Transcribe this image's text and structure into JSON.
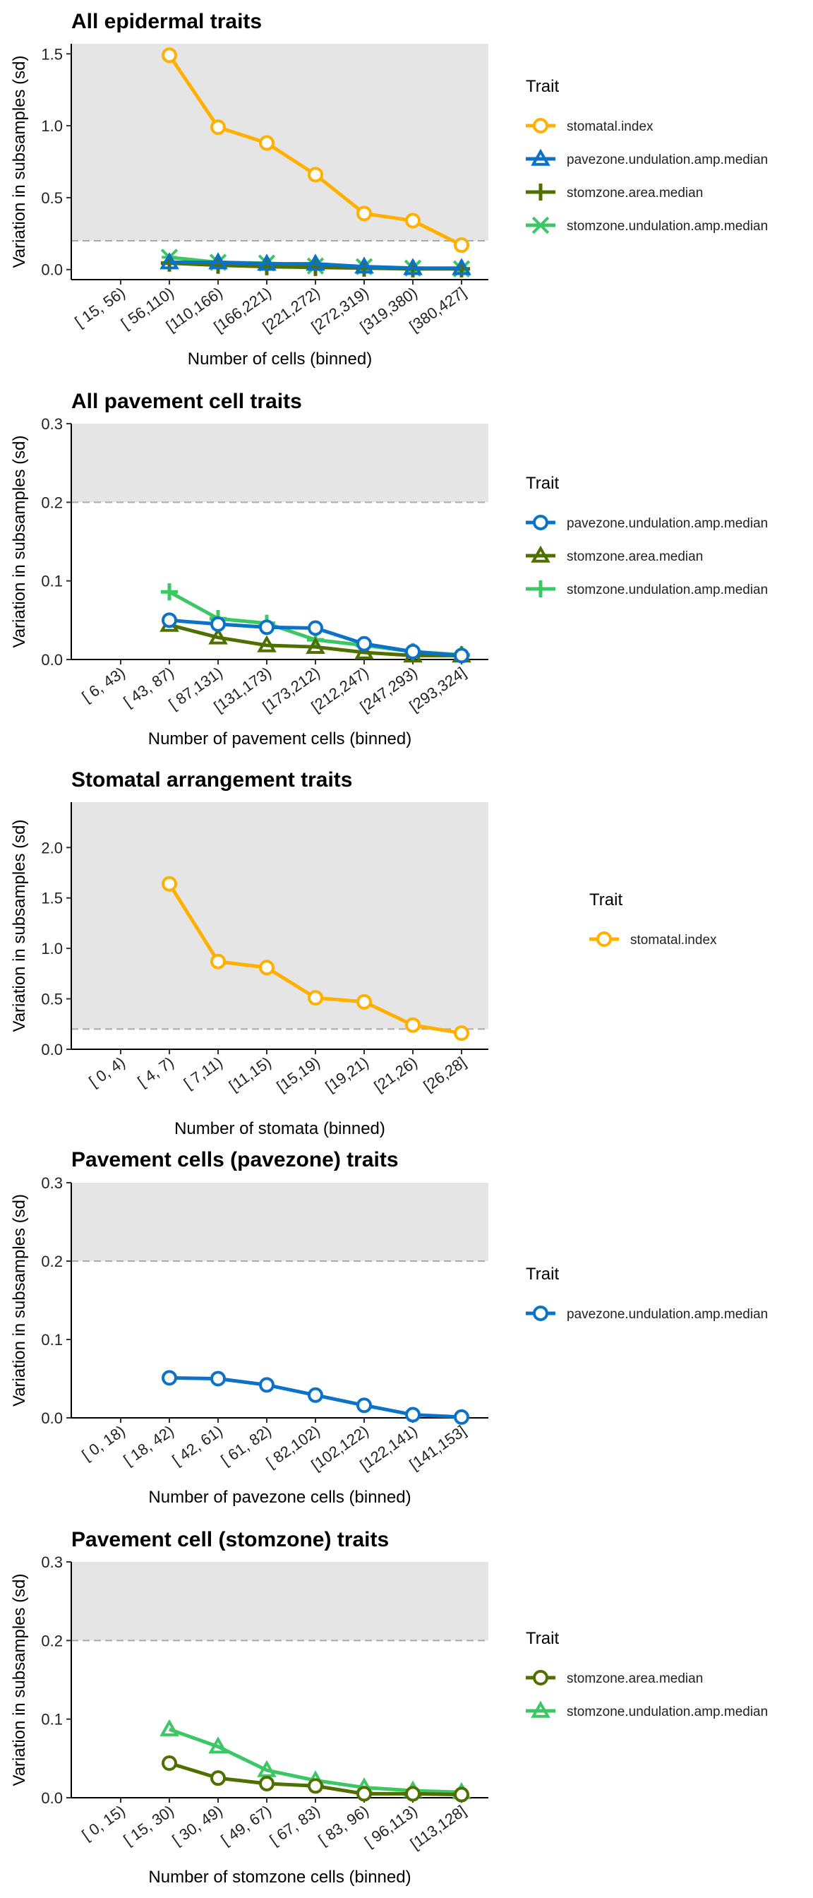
{
  "colors": {
    "stomatal.index": "#FFB000",
    "pavezone.undulation.amp.median": "#0B72C8",
    "stomzone.area.median": "#4F7000",
    "stomzone.undulation.amp.median": "#3CC765",
    "threshold_band": "#E5E5E5",
    "threshold_line": "#AAAAAA"
  },
  "chart_data": [
    {
      "type": "line",
      "title": "All epidermal traits",
      "xlabel": "Number of cells (binned)",
      "ylabel": "Variation in subsamples (sd)",
      "categories": [
        "[ 15, 56)",
        "[ 56,110)",
        "[110,166)",
        "[166,221)",
        "[221,272)",
        "[272,319)",
        "[319,380)",
        "[380,427]"
      ],
      "ylim": [
        -0.07,
        1.57
      ],
      "yticks": [
        0.0,
        0.5,
        1.0,
        1.5
      ],
      "threshold": 0.2,
      "legend_title": "Trait",
      "legend_position": "right",
      "series": [
        {
          "name": "stomatal.index",
          "shape": "circle",
          "values": [
            null,
            1.49,
            0.99,
            0.88,
            0.66,
            0.39,
            0.34,
            0.17
          ]
        },
        {
          "name": "pavezone.undulation.amp.median",
          "shape": "triangle",
          "values": [
            null,
            0.05,
            0.05,
            0.04,
            0.04,
            0.02,
            0.01,
            0.01
          ]
        },
        {
          "name": "stomzone.area.median",
          "shape": "plus",
          "values": [
            null,
            0.045,
            0.03,
            0.02,
            0.015,
            0.01,
            0.005,
            0.005
          ]
        },
        {
          "name": "stomzone.undulation.amp.median",
          "shape": "asterisk",
          "values": [
            null,
            0.085,
            0.05,
            0.045,
            0.025,
            0.02,
            0.01,
            0.005
          ]
        }
      ]
    },
    {
      "type": "line",
      "title": "All pavement cell traits",
      "xlabel": "Number of pavement cells (binned)",
      "ylabel": "Variation in subsamples (sd)",
      "categories": [
        "[  6, 43)",
        "[ 43, 87)",
        "[ 87,131)",
        "[131,173)",
        "[173,212)",
        "[212,247)",
        "[247,293)",
        "[293,324]"
      ],
      "ylim": [
        0.0,
        0.3
      ],
      "yticks": [
        0.0,
        0.1,
        0.2,
        0.3
      ],
      "threshold": 0.2,
      "legend_title": "Trait",
      "legend_position": "right",
      "series": [
        {
          "name": "pavezone.undulation.amp.median",
          "shape": "circle",
          "values": [
            null,
            0.05,
            0.045,
            0.041,
            0.04,
            0.02,
            0.01,
            0.005
          ]
        },
        {
          "name": "stomzone.area.median",
          "shape": "triangle",
          "values": [
            null,
            0.044,
            0.028,
            0.018,
            0.016,
            0.009,
            0.005,
            0.005
          ]
        },
        {
          "name": "stomzone.undulation.amp.median",
          "shape": "plus",
          "values": [
            null,
            0.086,
            0.052,
            0.046,
            0.025,
            0.018,
            0.01,
            0.006
          ]
        }
      ]
    },
    {
      "type": "line",
      "title": "Stomatal arrangement traits",
      "xlabel": "Number of stomata (binned)",
      "ylabel": "Variation in subsamples (sd)",
      "categories": [
        "[ 0, 4)",
        "[ 4, 7)",
        "[ 7,11)",
        "[11,15)",
        "[15,19)",
        "[19,21)",
        "[21,26)",
        "[26,28]"
      ],
      "ylim": [
        0.0,
        2.45
      ],
      "yticks": [
        0.0,
        0.5,
        1.0,
        1.5,
        2.0
      ],
      "threshold": 0.2,
      "legend_title": "Trait",
      "legend_position": "right",
      "series": [
        {
          "name": "stomatal.index",
          "shape": "circle",
          "values": [
            null,
            1.64,
            0.87,
            0.81,
            0.51,
            0.47,
            0.24,
            0.16
          ]
        }
      ]
    },
    {
      "type": "line",
      "title": "Pavement cells (pavezone) traits",
      "xlabel": "Number of pavezone cells (binned)",
      "ylabel": "Variation in subsamples (sd)",
      "categories": [
        "[  0, 18)",
        "[ 18, 42)",
        "[ 42, 61)",
        "[ 61, 82)",
        "[ 82,102)",
        "[102,122)",
        "[122,141)",
        "[141,153]"
      ],
      "ylim": [
        0.0,
        0.3
      ],
      "yticks": [
        0.0,
        0.1,
        0.2,
        0.3
      ],
      "threshold": 0.2,
      "legend_title": "Trait",
      "legend_position": "right",
      "series": [
        {
          "name": "pavezone.undulation.amp.median",
          "shape": "circle",
          "values": [
            null,
            0.051,
            0.05,
            0.042,
            0.029,
            0.016,
            0.004,
            0.001
          ]
        }
      ]
    },
    {
      "type": "line",
      "title": "Pavement cell (stomzone) traits",
      "xlabel": "Number of stomzone cells (binned)",
      "ylabel": "Variation in subsamples (sd)",
      "categories": [
        "[  0, 15)",
        "[ 15, 30)",
        "[ 30, 49)",
        "[ 49, 67)",
        "[ 67, 83)",
        "[ 83, 96)",
        "[ 96,113)",
        "[113,128]"
      ],
      "ylim": [
        0.0,
        0.3
      ],
      "yticks": [
        0.0,
        0.1,
        0.2,
        0.3
      ],
      "threshold": 0.2,
      "legend_title": "Trait",
      "legend_position": "right",
      "series": [
        {
          "name": "stomzone.area.median",
          "shape": "circle",
          "values": [
            null,
            0.044,
            0.025,
            0.018,
            0.015,
            0.005,
            0.005,
            0.004
          ]
        },
        {
          "name": "stomzone.undulation.amp.median",
          "shape": "triangle",
          "values": [
            null,
            0.087,
            0.065,
            0.035,
            0.022,
            0.013,
            0.009,
            0.007
          ]
        }
      ]
    }
  ]
}
